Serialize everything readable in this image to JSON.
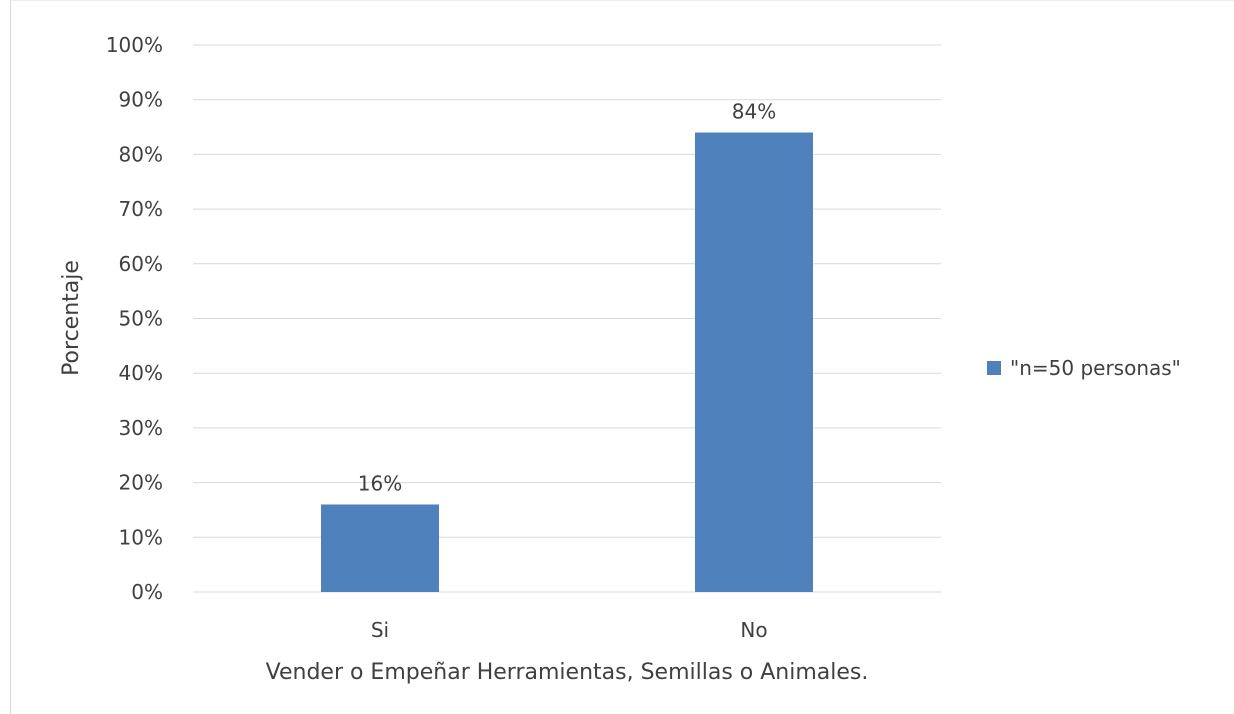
{
  "chart_data": {
    "type": "bar",
    "title": "",
    "xlabel": "Vender o Empeñar Herramientas, Semillas o Animales.",
    "ylabel": "Porcentaje",
    "categories": [
      "Si",
      "No"
    ],
    "series": [
      {
        "name": "\"n=50 personas\"",
        "values": [
          16,
          84
        ],
        "data_labels": [
          "16%",
          "84%"
        ],
        "color": "#4f81bd"
      }
    ],
    "ylim": [
      0,
      100
    ],
    "y_ticks": [
      "0%",
      "10%",
      "20%",
      "30%",
      "40%",
      "50%",
      "60%",
      "70%",
      "80%",
      "90%",
      "100%"
    ],
    "grid": true,
    "legend_position": "right"
  },
  "colors": {
    "bar": "#4f81bd",
    "grid": "#d9d9d9",
    "text": "#404040"
  }
}
